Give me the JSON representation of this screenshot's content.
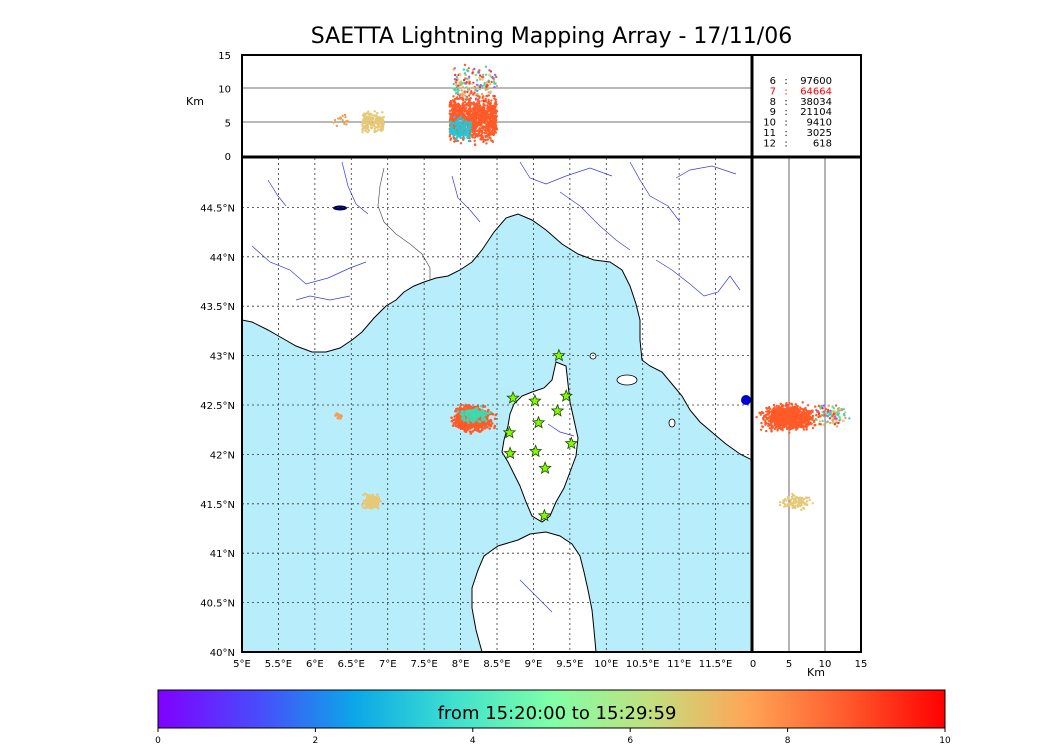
{
  "title": "SAETTA Lightning Mapping Array - 17/11/06",
  "colors": {
    "sea": "#b8eefb",
    "land": "#ffffff",
    "river": "#3a3ae8",
    "border": "#000000",
    "grid": "#333333",
    "star_fill": "#7cfc00",
    "highlight_count": "#ff0000"
  },
  "chart_data": [
    {
      "type": "scatter",
      "name": "altitude-vs-longitude",
      "ylabel": "Km",
      "xlim": [
        5,
        12
      ],
      "ylim": [
        0,
        15
      ],
      "y_ticks": [
        0,
        5,
        10,
        15
      ],
      "grid": "horizontal lines at 5 and 10 km",
      "clusters": [
        {
          "lon_range": [
            7.85,
            8.5
          ],
          "alt_range": [
            1,
            10
          ],
          "color": "#ff5a28",
          "count": 1100
        },
        {
          "lon_range": [
            7.85,
            8.15
          ],
          "alt_range": [
            1.5,
            6.5
          ],
          "color": "#20c8d8",
          "count": 150
        },
        {
          "lon_range": [
            7.9,
            8.5
          ],
          "alt_range": [
            7,
            14.5
          ],
          "color": "mixed",
          "count": 150
        },
        {
          "lon_range": [
            6.65,
            6.95
          ],
          "alt_range": [
            3,
            7
          ],
          "color": "#e6c878",
          "count": 180
        },
        {
          "lon_range": [
            6.25,
            6.45
          ],
          "alt_range": [
            4,
            7
          ],
          "color": "#f2a050",
          "count": 15
        }
      ]
    },
    {
      "type": "scatter",
      "name": "plan-view-map",
      "xlim": [
        5,
        12
      ],
      "ylim": [
        40,
        45
      ],
      "x_ticks": [
        "5°E",
        "5.5°E",
        "6°E",
        "6.5°E",
        "7°E",
        "7.5°E",
        "8°E",
        "8.5°E",
        "9°E",
        "9.5°E",
        "10°E",
        "10.5°E",
        "11°E",
        "11.5°E"
      ],
      "y_ticks": [
        "40°N",
        "40.5°N",
        "41°N",
        "41.5°N",
        "42°N",
        "42.5°N",
        "43°N",
        "43.5°N",
        "44°N",
        "44.5°N"
      ],
      "grid": "dotted at every 0.5 degree",
      "clusters": [
        {
          "lon_range": [
            7.85,
            8.5
          ],
          "lat_range": [
            42.2,
            42.52
          ],
          "color": "#ff5a28",
          "count": 1000
        },
        {
          "lon_range": [
            7.9,
            8.45
          ],
          "lat_range": [
            42.3,
            42.5
          ],
          "color": "#40d8b0",
          "count": 120
        },
        {
          "lon_range": [
            6.6,
            6.95
          ],
          "lat_range": [
            41.42,
            41.62
          ],
          "color": "#e6c878",
          "count": 120
        },
        {
          "lon_range": [
            6.25,
            6.4
          ],
          "lat_range": [
            42.35,
            42.42
          ],
          "color": "#f2a050",
          "count": 20
        }
      ],
      "stations": [
        {
          "lon": 9.35,
          "lat": 43.0
        },
        {
          "lon": 8.72,
          "lat": 42.57
        },
        {
          "lon": 9.02,
          "lat": 42.54
        },
        {
          "lon": 9.45,
          "lat": 42.59
        },
        {
          "lon": 9.07,
          "lat": 42.32
        },
        {
          "lon": 9.33,
          "lat": 42.44
        },
        {
          "lon": 8.67,
          "lat": 42.22
        },
        {
          "lon": 8.68,
          "lat": 42.01
        },
        {
          "lon": 9.03,
          "lat": 42.03
        },
        {
          "lon": 9.52,
          "lat": 42.11
        },
        {
          "lon": 9.16,
          "lat": 41.86
        },
        {
          "lon": 9.15,
          "lat": 41.38
        }
      ]
    },
    {
      "type": "scatter",
      "name": "latitude-vs-altitude",
      "xlabel": "Km",
      "xlim": [
        0,
        15
      ],
      "ylim": [
        40,
        45
      ],
      "x_ticks": [
        0,
        5,
        10,
        15
      ],
      "grid": "vertical lines at 5 and 10 km",
      "clusters": [
        {
          "alt_range": [
            0,
            10
          ],
          "lat_range": [
            42.2,
            42.55
          ],
          "color": "#ff5a28",
          "count": 900
        },
        {
          "alt_range": [
            8,
            14
          ],
          "lat_range": [
            42.25,
            42.55
          ],
          "color": "mixed",
          "count": 100
        },
        {
          "alt_range": [
            3,
            9
          ],
          "lat_range": [
            41.42,
            41.62
          ],
          "color": "#e6c878",
          "count": 110
        }
      ]
    },
    {
      "type": "table",
      "name": "altitude-counts",
      "rows": [
        {
          "label": "6",
          "value": "97600"
        },
        {
          "label": "7",
          "value": "64664"
        },
        {
          "label": "8",
          "value": "38034"
        },
        {
          "label": "9",
          "value": "21104"
        },
        {
          "label": "10",
          "value": "9410"
        },
        {
          "label": "11",
          "value": "3025"
        },
        {
          "label": "12",
          "value": "618"
        }
      ],
      "highlight_index": 1
    },
    {
      "type": "heatmap",
      "name": "time-colorbar",
      "label": "from 15:20:00 to 15:29:59",
      "ticks": [
        0,
        2,
        4,
        6,
        8,
        10
      ],
      "range": [
        0,
        10
      ],
      "colormap": [
        "#8000ff",
        "#4a4afc",
        "#0ba7e8",
        "#3ee0d0",
        "#80ffa6",
        "#c2e080",
        "#ffa556",
        "#ff5a2c",
        "#ff0000"
      ]
    }
  ]
}
